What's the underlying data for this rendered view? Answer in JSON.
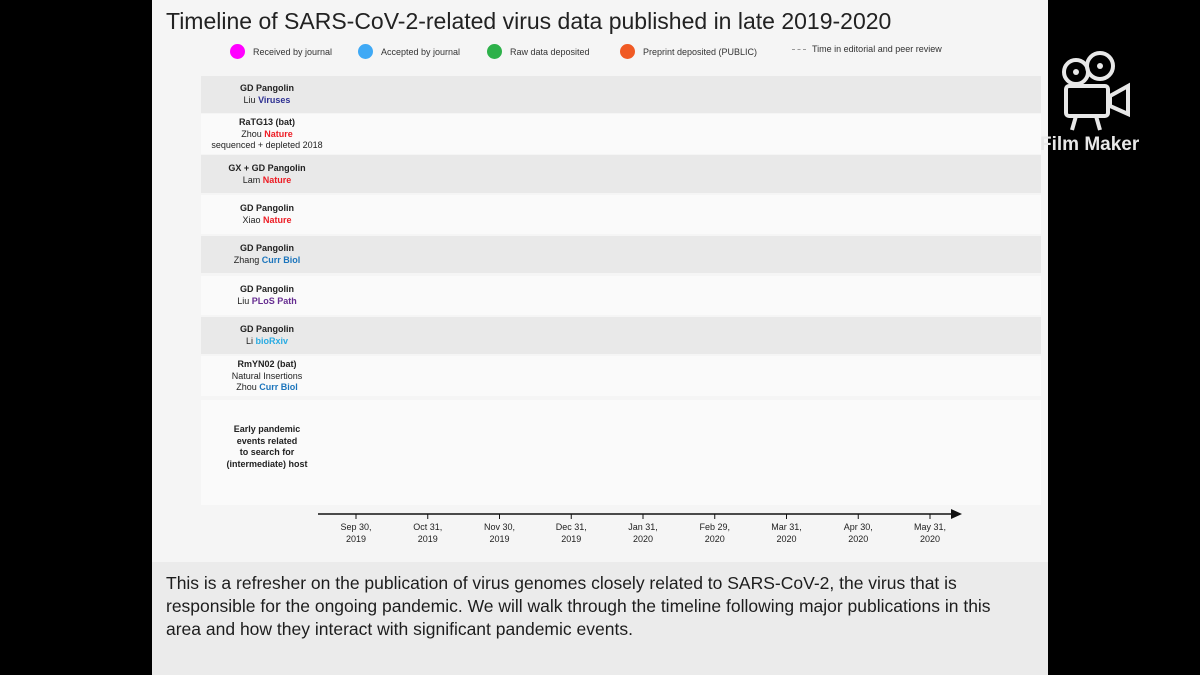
{
  "chart_data": {
    "type": "timeline",
    "title": "Timeline of SARS-CoV-2-related virus data published in late 2019-2020",
    "legend": [
      {
        "label": "Received by journal",
        "color": "#ff00ff",
        "style": "dot"
      },
      {
        "label": "Accepted by journal",
        "color": "#3fa9f5",
        "style": "dot"
      },
      {
        "label": "Raw data deposited",
        "color": "#2db14a",
        "style": "dot"
      },
      {
        "label": "Preprint deposited (PUBLIC)",
        "color": "#f05a24",
        "style": "dot"
      },
      {
        "label": "Time in editorial and peer review",
        "color": "#999999",
        "style": "dashed-line"
      }
    ],
    "rows": [
      {
        "name": "GD Pangolin",
        "author": "Liu",
        "source": "Viruses",
        "source_color": "#2e3192",
        "extra": ""
      },
      {
        "name": "RaTG13 (bat)",
        "author": "Zhou",
        "source": "Nature",
        "source_color": "#ed1c24",
        "extra": "sequenced + depleted 2018"
      },
      {
        "name": "GX + GD Pangolin",
        "author": "Lam",
        "source": "Nature",
        "source_color": "#ed1c24",
        "extra": ""
      },
      {
        "name": "GD Pangolin",
        "author": "Xiao",
        "source": "Nature",
        "source_color": "#ed1c24",
        "extra": ""
      },
      {
        "name": "GD Pangolin",
        "author": "Zhang",
        "source": "Curr Biol",
        "source_color": "#1c75bc",
        "extra": ""
      },
      {
        "name": "GD Pangolin",
        "author": "Liu",
        "source": "PLoS Path",
        "source_color": "#662d91",
        "extra": ""
      },
      {
        "name": "GD Pangolin",
        "author": "Li",
        "source": "bioRxiv",
        "source_color": "#29abe2",
        "extra": ""
      },
      {
        "name": "RmYN02 (bat)",
        "author": "Zhou",
        "source": "Curr Biol",
        "source_color": "#1c75bc",
        "extra": "Natural Insertions",
        "extra_first": true
      }
    ],
    "bottom_row_label": [
      "Early pandemic",
      "events related",
      "to search for",
      "(intermediate) host"
    ],
    "x_ticks": [
      [
        "Sep 30,",
        "2019"
      ],
      [
        "Oct 31,",
        "2019"
      ],
      [
        "Nov 30,",
        "2019"
      ],
      [
        "Dec 31,",
        "2019"
      ],
      [
        "Jan 31,",
        "2020"
      ],
      [
        "Feb 29,",
        "2020"
      ],
      [
        "Mar 31,",
        "2020"
      ],
      [
        "Apr 30,",
        "2020"
      ],
      [
        "May 31,",
        "2020"
      ]
    ],
    "grid": false
  },
  "caption": "This is a refresher on the publication of virus genomes closely related to SARS-CoV-2, the virus that is responsible for the ongoing pandemic. We will walk through the timeline following major publications in this area and how they interact with significant pandemic events.",
  "watermark": {
    "label": "Film Maker",
    "icon": "film-camera-icon"
  }
}
